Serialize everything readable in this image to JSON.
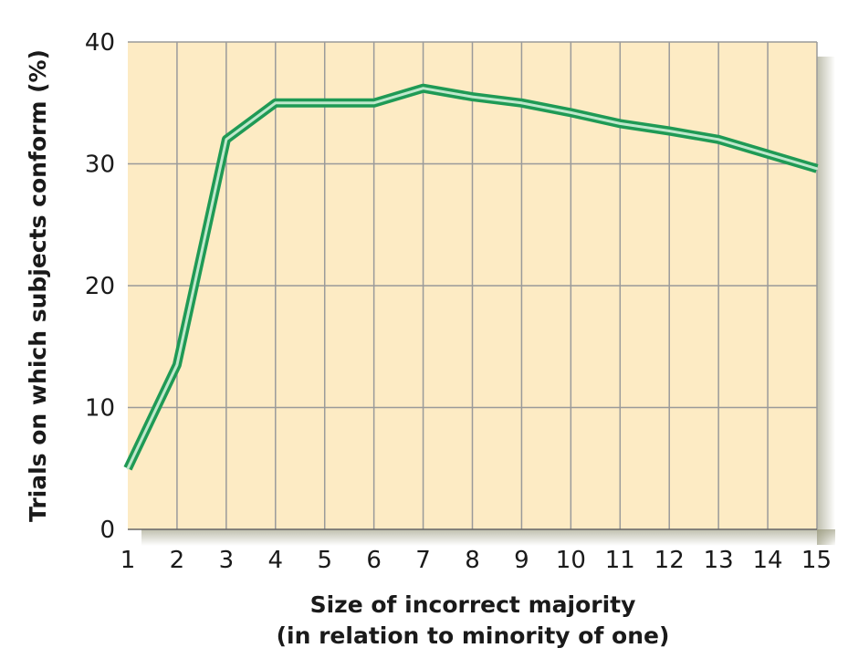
{
  "chart_data": {
    "type": "line",
    "xlabel_line1": "Size of incorrect majority",
    "xlabel_line2": "(in relation to minority of one)",
    "ylabel": "Trials on which subjects conform (%)",
    "x": [
      1,
      2,
      3,
      4,
      5,
      6,
      7,
      8,
      9,
      10,
      11,
      12,
      13,
      14,
      15
    ],
    "values": [
      5,
      13.5,
      32,
      35,
      35,
      35,
      36.2,
      35.5,
      35,
      34.2,
      33.3,
      32.7,
      32,
      30.8,
      29.6
    ],
    "xticks": [
      "1",
      "2",
      "3",
      "4",
      "5",
      "6",
      "7",
      "8",
      "9",
      "10",
      "11",
      "12",
      "13",
      "14",
      "15"
    ],
    "yticks": [
      "0",
      "10",
      "20",
      "30",
      "40"
    ],
    "xlim": [
      1,
      15
    ],
    "ylim": [
      0,
      40
    ],
    "grid": true,
    "colors": {
      "plot_background": "#fdebc4",
      "line": "#1f9a55",
      "line_highlight": "#bfe8cc",
      "grid": "#9a9a9a"
    }
  }
}
